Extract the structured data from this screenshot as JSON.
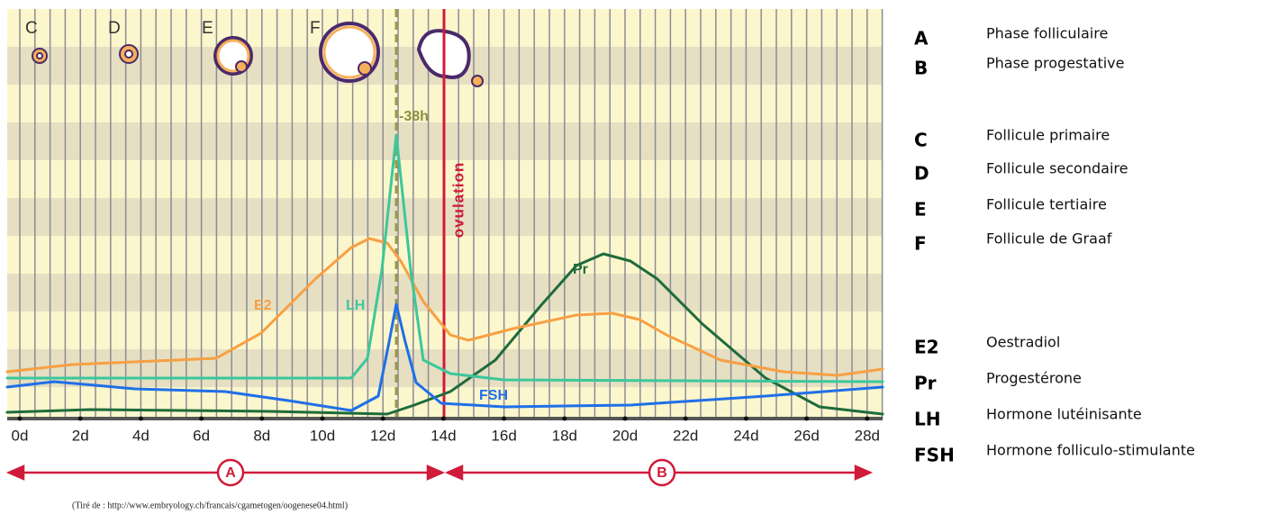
{
  "follicle_labels": [
    "C",
    "D",
    "E",
    "F"
  ],
  "annotations": {
    "lh_peak": "-38h",
    "ovulation": "ovulation"
  },
  "curve_labels": {
    "e2": "E2",
    "lh": "LH",
    "fsh": "FSH",
    "pr": "Pr"
  },
  "x_axis": {
    "ticks": [
      "0d",
      "2d",
      "4d",
      "6d",
      "8d",
      "10d",
      "12d",
      "14d",
      "16d",
      "18d",
      "20d",
      "22d",
      "24d",
      "26d",
      "28d"
    ]
  },
  "phases": [
    "A",
    "B"
  ],
  "source": "(Tiré de : http://www.embryology.ch/francais/cgametogen/oogenese04.html)",
  "legend": [
    {
      "key": "A",
      "label": "Phase folliculaire"
    },
    {
      "key": "B",
      "label": "Phase progestative"
    },
    {
      "key": "C",
      "label": "Follicule primaire"
    },
    {
      "key": "D",
      "label": "Follicule secondaire"
    },
    {
      "key": "E",
      "label": "Follicule tertiaire"
    },
    {
      "key": "F",
      "label": "Follicule de Graaf"
    },
    {
      "key": "E2",
      "label": "Oestradiol"
    },
    {
      "key": "Pr",
      "label": "Progestérone"
    },
    {
      "key": "LH",
      "label": "Hormone lutéinisante"
    },
    {
      "key": "FSH",
      "label": "Hormone folliculo-stimulante"
    }
  ]
}
